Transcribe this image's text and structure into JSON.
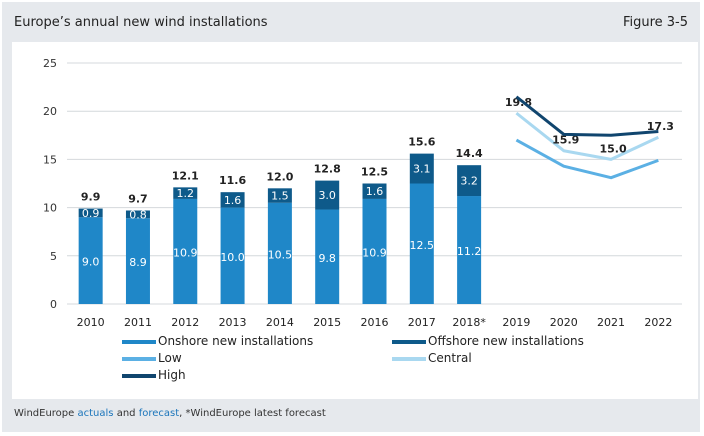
{
  "header": {
    "title": "Europe’s annual new wind installations",
    "figure": "Figure 3-5"
  },
  "footer": {
    "prefix": "WindEurope",
    "link1": "actuals",
    "and": "and",
    "link2": "forecast",
    "suffix": ", *WindEurope latest forecast"
  },
  "colors": {
    "onshore": "#1f87c8",
    "offshore": "#0e5a8a",
    "low": "#5bb0e4",
    "central": "#a9d8f0",
    "high": "#10456e"
  },
  "chart_data": {
    "type": "bar",
    "title": "Europe’s annual new wind installations",
    "ylim": [
      0,
      25
    ],
    "yticks": [
      "0",
      "5",
      "10",
      "15",
      "20",
      "25"
    ],
    "grid": true,
    "legend_position": "bottom",
    "categories": [
      "2010",
      "2011",
      "2012",
      "2013",
      "2014",
      "2015",
      "2016",
      "2017",
      "2018*",
      "2019",
      "2020",
      "2021",
      "2022"
    ],
    "bar_series": [
      {
        "name": "Onshore new installations",
        "values": [
          9.0,
          8.9,
          10.9,
          10.0,
          10.5,
          9.8,
          10.9,
          12.5,
          11.2
        ],
        "labels": [
          "9.0",
          "8.9",
          "10.9",
          "10.0",
          "10.5",
          "9.8",
          "10.9",
          "12.5",
          "11.2"
        ]
      },
      {
        "name": "Offshore new installations",
        "values": [
          0.9,
          0.8,
          1.2,
          1.6,
          1.5,
          3.0,
          1.6,
          3.1,
          3.2
        ],
        "labels": [
          "0.9",
          "0.8",
          "1.2",
          "1.6",
          "1.5",
          "3.0",
          "1.6",
          "3.1",
          "3.2"
        ]
      }
    ],
    "totals": [
      "9.9",
      "9.7",
      "12.1",
      "11.6",
      "12.0",
      "12.8",
      "12.5",
      "15.6",
      "14.4"
    ],
    "line_series": [
      {
        "name": "Low",
        "categories": [
          "2019",
          "2020",
          "2021",
          "2022"
        ],
        "values": [
          17.0,
          14.3,
          13.1,
          14.9
        ]
      },
      {
        "name": "Central",
        "categories": [
          "2019",
          "2020",
          "2021",
          "2022"
        ],
        "values": [
          19.8,
          15.9,
          15.0,
          17.3
        ],
        "labels": [
          "19.8",
          "15.9",
          "15.0",
          "17.3"
        ]
      },
      {
        "name": "High",
        "categories": [
          "2019",
          "2020",
          "2021",
          "2022"
        ],
        "values": [
          21.5,
          17.6,
          17.5,
          17.9
        ]
      }
    ]
  }
}
